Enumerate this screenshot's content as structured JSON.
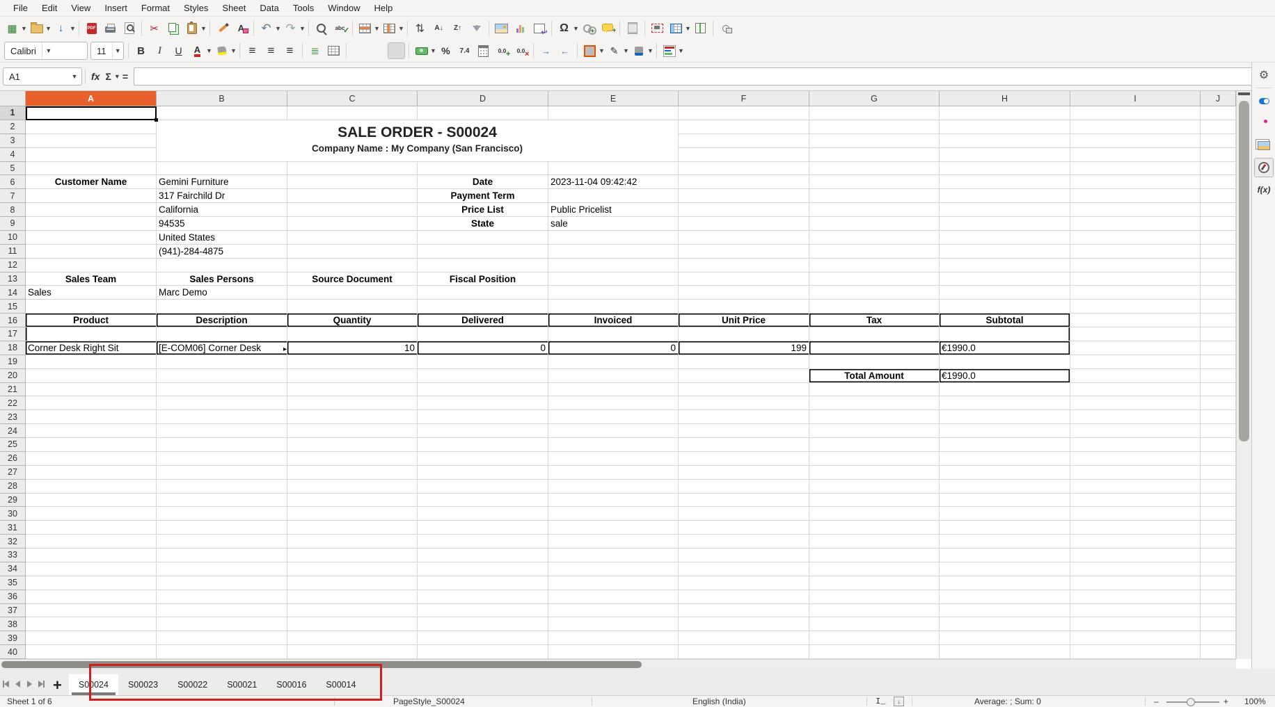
{
  "menu_bar": {
    "items": [
      "File",
      "Edit",
      "View",
      "Insert",
      "Format",
      "Styles",
      "Sheet",
      "Data",
      "Tools",
      "Window",
      "Help"
    ]
  },
  "toolbar_standard": {
    "buttons": [
      {
        "n": "new-document",
        "g": "▦",
        "c": "#2f7d31",
        "dd": 1
      },
      {
        "n": "open-file",
        "x": "folder",
        "dd": 1
      },
      {
        "n": "save",
        "g": "↓",
        "c": "#1565c0",
        "bold": 1,
        "dd": 1
      },
      {
        "sep": 1
      },
      {
        "n": "export-pdf",
        "x": "pdf",
        "label": "PDF"
      },
      {
        "n": "print",
        "x": "printer"
      },
      {
        "n": "print-preview",
        "x": "pagemag"
      },
      {
        "sep": 1
      },
      {
        "n": "cut",
        "g": "✂",
        "c": "#b42020"
      },
      {
        "n": "copy",
        "x": "copy"
      },
      {
        "n": "paste",
        "x": "paste",
        "dd": 1
      },
      {
        "sep": 1
      },
      {
        "n": "clone-formatting",
        "x": "brush"
      },
      {
        "n": "clear-formatting",
        "x": "clearfmt",
        "label": "A"
      },
      {
        "sep": 1
      },
      {
        "n": "undo",
        "g": "↶",
        "c": "#607d8b",
        "fs": 17,
        "dd": 1
      },
      {
        "n": "redo",
        "g": "↷",
        "c": "#90a4ae",
        "fs": 17,
        "dd": 1
      },
      {
        "sep": 1
      },
      {
        "n": "find-and-replace",
        "x": "mag"
      },
      {
        "n": "spelling",
        "x": "spell",
        "label": "abc"
      },
      {
        "sep": 1
      },
      {
        "n": "rows-menu",
        "x": "table-rowhl",
        "dd": 1
      },
      {
        "n": "columns-menu",
        "x": "table-colhl",
        "dd": 1
      },
      {
        "sep": 1
      },
      {
        "n": "sort",
        "g": "⇅",
        "c": "#444",
        "fs": 16
      },
      {
        "n": "sort-ascending",
        "g": "A↓",
        "c": "#333",
        "fs": 10,
        "bold": 1
      },
      {
        "n": "sort-descending",
        "g": "Z↑",
        "c": "#333",
        "fs": 10,
        "bold": 1
      },
      {
        "n": "autofilter",
        "x": "funnel"
      },
      {
        "sep": 1
      },
      {
        "n": "insert-image",
        "x": "image"
      },
      {
        "n": "insert-chart",
        "x": "chart"
      },
      {
        "n": "insert-pivot-table",
        "x": "pivot"
      },
      {
        "sep": 1
      },
      {
        "n": "special-character",
        "g": "Ω",
        "c": "#333",
        "fs": 16,
        "bold": 1,
        "dd": 1
      },
      {
        "n": "insert-hyperlink",
        "x": "chain"
      },
      {
        "n": "insert-comment",
        "x": "comment"
      },
      {
        "sep": 1
      },
      {
        "n": "headers-and-footers",
        "x": "hf"
      },
      {
        "sep": 1
      },
      {
        "n": "print-area",
        "x": "parea"
      },
      {
        "n": "freeze-rows-columns",
        "x": "table-frz",
        "dd": 1
      },
      {
        "n": "split-window",
        "x": "split"
      },
      {
        "sep": 1
      },
      {
        "n": "show-draw-functions",
        "x": "draw"
      }
    ]
  },
  "toolbar_formatting": {
    "font_name": "Calibri",
    "font_size": "11",
    "buttons": [
      {
        "combo": "font-name",
        "w": 118
      },
      {
        "combo": "font-size",
        "w": 46
      },
      {
        "sep": 1
      },
      {
        "n": "bold",
        "g": "B",
        "c": "#333",
        "fs": 15,
        "bold": 1
      },
      {
        "n": "italic",
        "g": "I",
        "c": "#333",
        "fs": 15,
        "italic": 1,
        "serif": 1
      },
      {
        "n": "underline",
        "g": "U",
        "c": "#333",
        "fs": 14,
        "underline": 1
      },
      {
        "n": "font-color",
        "x": "fc",
        "label": "A",
        "dd": 1
      },
      {
        "n": "highlighting-color",
        "x": "hl",
        "dd": 1
      },
      {
        "sep": 1
      },
      {
        "n": "align-left",
        "g": "≡",
        "c": "#333",
        "fs": 17
      },
      {
        "n": "align-center",
        "g": "≡",
        "c": "#333",
        "fs": 17
      },
      {
        "n": "align-right",
        "g": "≡",
        "c": "#333",
        "fs": 17
      },
      {
        "sep": 1
      },
      {
        "n": "wrap-text",
        "g": "≣",
        "c": "#3c8c3c",
        "fs": 15
      },
      {
        "n": "merge-cells",
        "x": "table-plain"
      },
      {
        "sep": 1
      },
      {
        "n": "align-top",
        "x": "vtop"
      },
      {
        "n": "center-vertically",
        "x": "vcen"
      },
      {
        "n": "align-bottom",
        "x": "vbot",
        "pressed": 1
      },
      {
        "sep": 1
      },
      {
        "n": "format-as-currency",
        "x": "money",
        "dd": 1
      },
      {
        "n": "format-as-percent",
        "g": "%",
        "c": "#333",
        "fs": 14,
        "bold": 1
      },
      {
        "n": "format-as-number",
        "g": "7.4",
        "c": "#333",
        "fs": 10,
        "bold": 1
      },
      {
        "n": "format-as-date",
        "x": "cal"
      },
      {
        "n": "add-decimal-place",
        "x": "dec-add",
        "label": "0.0"
      },
      {
        "n": "delete-decimal-place",
        "x": "dec-del",
        "label": "0.0"
      },
      {
        "sep": 1
      },
      {
        "n": "increase-indent",
        "g": "→",
        "c": "#1976d2",
        "fs": 13,
        "bold": 1
      },
      {
        "n": "decrease-indent",
        "g": "←",
        "c": "#7e57c2",
        "fs": 13,
        "bold": 1
      },
      {
        "sep": 1
      },
      {
        "n": "borders",
        "x": "borders",
        "dd": 1
      },
      {
        "n": "border-style",
        "g": "✎",
        "c": "#333",
        "fs": 14,
        "dd": 1
      },
      {
        "n": "background-color",
        "x": "bgc",
        "dd": 1
      },
      {
        "sep": 1
      },
      {
        "n": "conditional-formatting",
        "x": "cf",
        "dd": 1
      }
    ]
  },
  "formula_bar": {
    "cell_reference": "A1",
    "content": "",
    "function_wizard_label": "fx",
    "sum_label": "Σ",
    "formula_label": "="
  },
  "grid": {
    "columns": [
      "A",
      "B",
      "C",
      "D",
      "E",
      "F",
      "G",
      "H",
      "I",
      "J"
    ],
    "visible_rows": 40,
    "selected_cell": "A1",
    "selected_column": "A",
    "selected_row": 1,
    "merged_title": {
      "range": "B2:E4",
      "title": "SALE ORDER - S00024",
      "subtitle": "Company Name : My Company (San Francisco)"
    },
    "cells": [
      {
        "ref": "A6",
        "text": "Customer Name",
        "bold": true,
        "align": "center"
      },
      {
        "ref": "B6",
        "text": "Gemini Furniture"
      },
      {
        "ref": "D6",
        "text": "Date",
        "bold": true,
        "align": "center"
      },
      {
        "ref": "E6",
        "text": "2023-11-04 09:42:42"
      },
      {
        "ref": "B7",
        "text": "317 Fairchild Dr"
      },
      {
        "ref": "D7",
        "text": "Payment Term",
        "bold": true,
        "align": "center"
      },
      {
        "ref": "B8",
        "text": "California"
      },
      {
        "ref": "D8",
        "text": "Price List",
        "bold": true,
        "align": "center"
      },
      {
        "ref": "E8",
        "text": "Public Pricelist"
      },
      {
        "ref": "B9",
        "text": "94535"
      },
      {
        "ref": "D9",
        "text": "State",
        "bold": true,
        "align": "center"
      },
      {
        "ref": "E9",
        "text": "sale"
      },
      {
        "ref": "B10",
        "text": "United States"
      },
      {
        "ref": "B11",
        "text": "(941)-284-4875"
      },
      {
        "ref": "A13",
        "text": "Sales Team",
        "bold": true,
        "align": "center"
      },
      {
        "ref": "B13",
        "text": "Sales Persons",
        "bold": true,
        "align": "center"
      },
      {
        "ref": "C13",
        "text": "Source Document",
        "bold": true,
        "align": "center"
      },
      {
        "ref": "D13",
        "text": "Fiscal Position",
        "bold": true,
        "align": "center"
      },
      {
        "ref": "A14",
        "text": "Sales"
      },
      {
        "ref": "B14",
        "text": "Marc Demo"
      },
      {
        "ref": "A16",
        "text": "Product",
        "bold": true,
        "align": "center",
        "border": "box"
      },
      {
        "ref": "B16",
        "text": "Description",
        "bold": true,
        "align": "center",
        "border": "box"
      },
      {
        "ref": "C16",
        "text": "Quantity",
        "bold": true,
        "align": "center",
        "border": "box"
      },
      {
        "ref": "D16",
        "text": "Delivered",
        "bold": true,
        "align": "center",
        "border": "box"
      },
      {
        "ref": "E16",
        "text": "Invoiced",
        "bold": true,
        "align": "center",
        "border": "box"
      },
      {
        "ref": "F16",
        "text": "Unit Price",
        "bold": true,
        "align": "center",
        "border": "box"
      },
      {
        "ref": "G16",
        "text": "Tax",
        "bold": true,
        "align": "center",
        "border": "box"
      },
      {
        "ref": "H16",
        "text": "Subtotal",
        "bold": true,
        "align": "center",
        "border": "box"
      },
      {
        "ref": "A17",
        "text": "",
        "border": "left"
      },
      {
        "ref": "H17",
        "text": "",
        "border": "right"
      },
      {
        "ref": "A18",
        "text": "Corner Desk Right Sit",
        "border": "box"
      },
      {
        "ref": "B18",
        "text": "[E-COM06] Corner Desk",
        "border": "box",
        "truncated": true
      },
      {
        "ref": "C18",
        "text": "10",
        "align": "right",
        "border": "box"
      },
      {
        "ref": "D18",
        "text": "0",
        "align": "right",
        "border": "box"
      },
      {
        "ref": "E18",
        "text": "0",
        "align": "right",
        "border": "box"
      },
      {
        "ref": "F18",
        "text": "199",
        "align": "right",
        "border": "box"
      },
      {
        "ref": "G18",
        "text": "",
        "border": "box"
      },
      {
        "ref": "H18",
        "text": "€1990.0",
        "border": "box"
      },
      {
        "ref": "G20",
        "text": "Total Amount",
        "bold": true,
        "align": "center",
        "border": "box"
      },
      {
        "ref": "H20",
        "text": "€1990.0",
        "border": "box"
      }
    ]
  },
  "sheet_tabs": {
    "tabs": [
      "S00024",
      "S00023",
      "S00022",
      "S00021",
      "S00016",
      "S00014"
    ],
    "active_tab": "S00024",
    "annotation": "red highlight box around sheet tabs"
  },
  "status_bar": {
    "sheet_info": "Sheet 1 of 6",
    "page_style": "PageStyle_S00024",
    "language": "English (India)",
    "selection_stats": "Average: ; Sum: 0",
    "zoom_level": "100%",
    "zoom_minus": "–",
    "zoom_plus": "+"
  },
  "sidebar": {
    "icons": [
      {
        "name": "sidebar-settings",
        "kind": "gear"
      },
      {
        "name": "properties",
        "kind": "toggle"
      },
      {
        "name": "styles",
        "kind": "astyle"
      },
      {
        "name": "gallery",
        "kind": "gallery"
      },
      {
        "name": "navigator",
        "kind": "compass",
        "boxed": true
      },
      {
        "name": "functions",
        "kind": "fx",
        "label": "f(x)"
      }
    ]
  },
  "colors": {
    "selected_header": "#e8612c",
    "annotation_box": "#d01f1f",
    "gridline": "#d6d6d6",
    "active_tab_underline": "#7a7a7a"
  }
}
